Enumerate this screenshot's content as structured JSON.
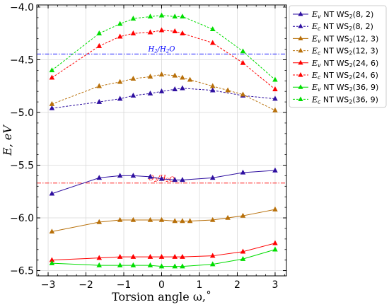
{
  "chart_data": {
    "type": "line",
    "xlabel": "Torsion angle ω,˚",
    "ylabel": "E, eV",
    "xlim": [
      -3.3,
      3.3
    ],
    "ylim": [
      -6.55,
      -3.98
    ],
    "xticks": [
      "−3",
      "−2",
      "−1",
      "0",
      "1",
      "2",
      "3"
    ],
    "xtick_values": [
      -3,
      -2,
      -1,
      0,
      1,
      2,
      3
    ],
    "yticks": [
      "−4.0",
      "−4.5",
      "−5.0",
      "−5.5",
      "−6.0",
      "−6.5"
    ],
    "ytick_values": [
      -4.0,
      -4.5,
      -5.0,
      -5.5,
      -6.0,
      -6.5
    ],
    "grid": true,
    "legend_position": "outside-right",
    "reference_lines": [
      {
        "label": "H2/H2O",
        "y": -4.445,
        "color": "#0000ff",
        "style": "dashdot"
      },
      {
        "label": "O2/H2O",
        "y": -5.67,
        "color": "#ff0000",
        "style": "dashdot"
      }
    ],
    "series": [
      {
        "name": "Ev NT WS2(8, 2)",
        "legend_sub": "v",
        "legend_arg": "(8, 2)",
        "color": "#2e0fa0",
        "dash": false,
        "x": [
          -2.9,
          -1.65,
          -1.1,
          -0.75,
          -0.3,
          0,
          0.35,
          0.55,
          1.35,
          2.15,
          3.0
        ],
        "y": [
          -5.77,
          -5.62,
          -5.6,
          -5.6,
          -5.61,
          -5.63,
          -5.64,
          -5.64,
          -5.62,
          -5.57,
          -5.55
        ]
      },
      {
        "name": "Ec NT WS2(8, 2)",
        "legend_sub": "c",
        "legend_arg": "(8, 2)",
        "color": "#2e0fa0",
        "dash": true,
        "x": [
          -2.9,
          -1.65,
          -1.1,
          -0.75,
          -0.3,
          0,
          0.35,
          0.55,
          1.35,
          2.15,
          3.0
        ],
        "y": [
          -4.96,
          -4.9,
          -4.87,
          -4.84,
          -4.82,
          -4.8,
          -4.78,
          -4.77,
          -4.79,
          -4.84,
          -4.87
        ]
      },
      {
        "name": "Ev NT WS2(12, 3)",
        "legend_sub": "v",
        "legend_arg": "(12, 3)",
        "color": "#b8700a",
        "dash": false,
        "x": [
          -2.9,
          -1.65,
          -1.1,
          -0.75,
          -0.3,
          0,
          0.35,
          0.55,
          0.75,
          1.35,
          1.75,
          2.15,
          3.0
        ],
        "y": [
          -6.13,
          -6.04,
          -6.02,
          -6.02,
          -6.02,
          -6.02,
          -6.03,
          -6.03,
          -6.03,
          -6.02,
          -6.0,
          -5.98,
          -5.92
        ]
      },
      {
        "name": "Ec NT WS2(12, 3)",
        "legend_sub": "c",
        "legend_arg": "(12, 3)",
        "color": "#b8700a",
        "dash": true,
        "x": [
          -2.9,
          -1.65,
          -1.1,
          -0.75,
          -0.3,
          0,
          0.35,
          0.55,
          0.75,
          1.35,
          1.75,
          2.15,
          3.0
        ],
        "y": [
          -4.92,
          -4.75,
          -4.71,
          -4.68,
          -4.66,
          -4.64,
          -4.65,
          -4.67,
          -4.69,
          -4.75,
          -4.79,
          -4.83,
          -4.98
        ]
      },
      {
        "name": "Ev NT WS2(24, 6)",
        "legend_sub": "v",
        "legend_arg": "(24, 6)",
        "color": "#ff0000",
        "dash": false,
        "x": [
          -2.9,
          -1.65,
          -1.1,
          -0.75,
          -0.3,
          0,
          0.35,
          0.55,
          1.35,
          2.15,
          3.0
        ],
        "y": [
          -6.4,
          -6.38,
          -6.37,
          -6.37,
          -6.37,
          -6.37,
          -6.37,
          -6.37,
          -6.36,
          -6.32,
          -6.24
        ]
      },
      {
        "name": "Ec NT WS2(24, 6)",
        "legend_sub": "c",
        "legend_arg": "(24, 6)",
        "color": "#ff0000",
        "dash": true,
        "x": [
          -2.9,
          -1.65,
          -1.1,
          -0.75,
          -0.3,
          0,
          0.35,
          0.55,
          1.35,
          2.15,
          3.0
        ],
        "y": [
          -4.67,
          -4.37,
          -4.28,
          -4.25,
          -4.24,
          -4.22,
          -4.23,
          -4.25,
          -4.34,
          -4.53,
          -4.78
        ]
      },
      {
        "name": "Ev NT WS2(36, 9)",
        "legend_sub": "v",
        "legend_arg": "(36, 9)",
        "color": "#00dd00",
        "dash": false,
        "x": [
          -2.9,
          -1.65,
          -1.1,
          -0.75,
          -0.3,
          0,
          0.35,
          0.55,
          1.35,
          2.15,
          3.0
        ],
        "y": [
          -6.43,
          -6.45,
          -6.45,
          -6.45,
          -6.45,
          -6.46,
          -6.46,
          -6.46,
          -6.44,
          -6.39,
          -6.3
        ]
      },
      {
        "name": "Ec NT WS2(36, 9)",
        "legend_sub": "c",
        "legend_arg": "(36, 9)",
        "color": "#00dd00",
        "dash": true,
        "x": [
          -2.9,
          -1.65,
          -1.1,
          -0.75,
          -0.3,
          0,
          0.35,
          0.55,
          1.35,
          2.15,
          3.0
        ],
        "y": [
          -4.6,
          -4.25,
          -4.16,
          -4.11,
          -4.09,
          -4.08,
          -4.09,
          -4.09,
          -4.21,
          -4.42,
          -4.69
        ]
      }
    ]
  }
}
